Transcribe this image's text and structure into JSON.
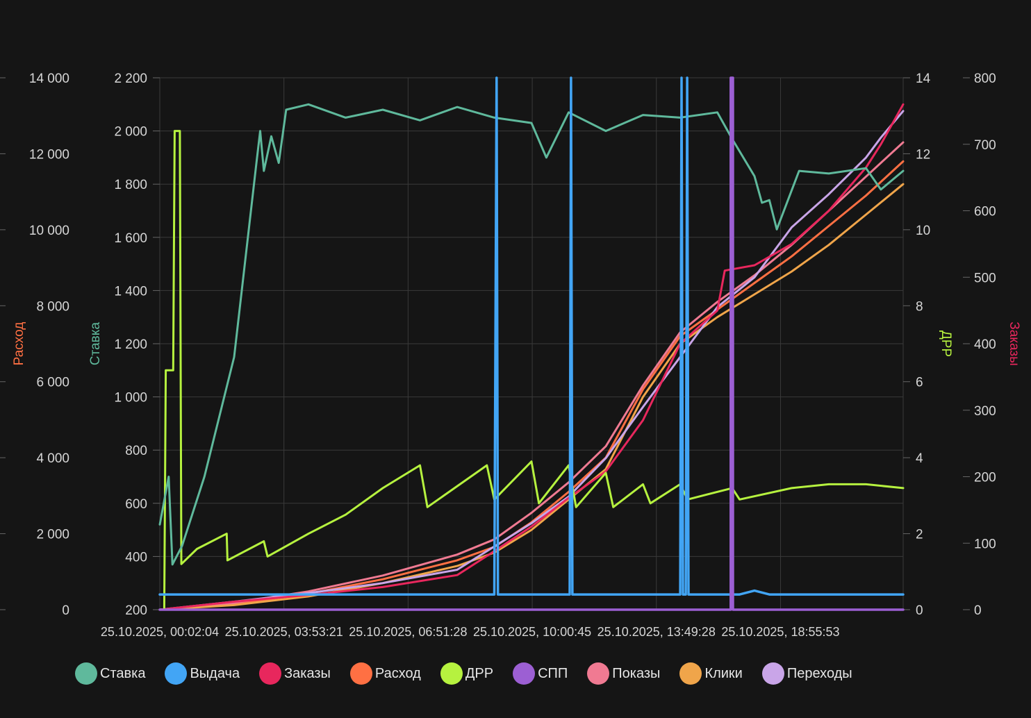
{
  "chart_data": {
    "type": "line",
    "axes": {
      "left_outer": {
        "label": "Расход",
        "color": "#ff7043",
        "ylim": [
          0,
          14000
        ],
        "ticks": [
          "0",
          "2 000",
          "4 000",
          "6 000",
          "8 000",
          "10 000",
          "12 000",
          "14 000"
        ]
      },
      "left_inner": {
        "label": "Ставка",
        "color": "#5fb99c",
        "ylim": [
          200,
          2200
        ],
        "ticks": [
          "200",
          "400",
          "600",
          "800",
          "1 000",
          "1 200",
          "1 400",
          "1 600",
          "1 800",
          "2 000",
          "2 200"
        ]
      },
      "right_inner": {
        "label": "ДРР",
        "color": "#b6f23f",
        "ylim": [
          0,
          14
        ],
        "ticks": [
          "0",
          "2",
          "4",
          "6",
          "8",
          "10",
          "12",
          "14"
        ]
      },
      "right_outer": {
        "label": "Заказы",
        "color": "#e8275d",
        "ylim": [
          0,
          800
        ],
        "ticks": [
          "0",
          "100",
          "200",
          "300",
          "400",
          "500",
          "600",
          "700",
          "800"
        ]
      }
    },
    "x_ticks": [
      "25.10.2025, 00:02:04",
      "25.10.2025, 03:53:21",
      "25.10.2025, 06:51:28",
      "25.10.2025, 10:00:45",
      "25.10.2025, 13:49:28",
      "25.10.2025, 18:55:53"
    ],
    "grid": true,
    "legend_position": "bottom",
    "series": [
      {
        "name": "Ставка",
        "color": "#5fb99c",
        "axis": "left_inner",
        "points": [
          [
            0,
            520
          ],
          [
            0.012,
            700
          ],
          [
            0.017,
            370
          ],
          [
            0.03,
            440
          ],
          [
            0.06,
            700
          ],
          [
            0.1,
            1150
          ],
          [
            0.13,
            1880
          ],
          [
            0.135,
            2000
          ],
          [
            0.14,
            1850
          ],
          [
            0.15,
            1980
          ],
          [
            0.16,
            1880
          ],
          [
            0.17,
            2080
          ],
          [
            0.2,
            2100
          ],
          [
            0.25,
            2050
          ],
          [
            0.3,
            2080
          ],
          [
            0.35,
            2040
          ],
          [
            0.4,
            2090
          ],
          [
            0.45,
            2050
          ],
          [
            0.5,
            2030
          ],
          [
            0.52,
            1900
          ],
          [
            0.55,
            2070
          ],
          [
            0.6,
            2000
          ],
          [
            0.65,
            2060
          ],
          [
            0.7,
            2050
          ],
          [
            0.75,
            2070
          ],
          [
            0.77,
            1970
          ],
          [
            0.8,
            1830
          ],
          [
            0.81,
            1730
          ],
          [
            0.82,
            1740
          ],
          [
            0.83,
            1630
          ],
          [
            0.86,
            1850
          ],
          [
            0.9,
            1840
          ],
          [
            0.95,
            1860
          ],
          [
            0.97,
            1780
          ],
          [
            1.0,
            1850
          ]
        ]
      },
      {
        "name": "Выдача",
        "color": "#42a5f5",
        "axis": "right_inner",
        "points": [
          [
            0,
            0.4
          ],
          [
            0.2,
            0.4
          ],
          [
            0.45,
            0.4
          ],
          [
            0.4531,
            14
          ],
          [
            0.4549,
            0.4
          ],
          [
            0.5514,
            0.4
          ],
          [
            0.5532,
            14
          ],
          [
            0.555,
            0.4
          ],
          [
            0.7001,
            0.4
          ],
          [
            0.7019,
            14
          ],
          [
            0.7037,
            0.4
          ],
          [
            0.7076,
            0.4
          ],
          [
            0.7094,
            14
          ],
          [
            0.7112,
            0.4
          ],
          [
            0.78,
            0.4
          ],
          [
            0.8,
            0.5
          ],
          [
            0.82,
            0.4
          ],
          [
            1.0,
            0.4
          ]
        ]
      },
      {
        "name": "Заказы",
        "color": "#e8275d",
        "axis": "right_outer",
        "points": [
          [
            0,
            0
          ],
          [
            0.1,
            12
          ],
          [
            0.2,
            22
          ],
          [
            0.3,
            34
          ],
          [
            0.4,
            52
          ],
          [
            0.45,
            88
          ],
          [
            0.5,
            125
          ],
          [
            0.55,
            168
          ],
          [
            0.6,
            208
          ],
          [
            0.65,
            285
          ],
          [
            0.7,
            400
          ],
          [
            0.75,
            450
          ],
          [
            0.76,
            510
          ],
          [
            0.8,
            518
          ],
          [
            0.85,
            550
          ],
          [
            0.9,
            600
          ],
          [
            0.95,
            665
          ],
          [
            0.97,
            700
          ],
          [
            1.0,
            760
          ]
        ]
      },
      {
        "name": "Расход",
        "color": "#ff7043",
        "axis": "left_outer",
        "points": [
          [
            0,
            0
          ],
          [
            0.1,
            150
          ],
          [
            0.2,
            420
          ],
          [
            0.3,
            800
          ],
          [
            0.4,
            1300
          ],
          [
            0.45,
            1650
          ],
          [
            0.5,
            2300
          ],
          [
            0.55,
            3100
          ],
          [
            0.6,
            4000
          ],
          [
            0.65,
            5800
          ],
          [
            0.7,
            7200
          ],
          [
            0.75,
            7900
          ],
          [
            0.8,
            8600
          ],
          [
            0.85,
            9300
          ],
          [
            0.9,
            10100
          ],
          [
            0.95,
            10900
          ],
          [
            1.0,
            11800
          ]
        ]
      },
      {
        "name": "ДРР",
        "color": "#b6f23f",
        "axis": "right_inner",
        "points": [
          [
            0,
            0
          ],
          [
            0.006,
            0
          ],
          [
            0.008,
            6.3
          ],
          [
            0.018,
            6.3
          ],
          [
            0.02,
            12.6
          ],
          [
            0.027,
            12.6
          ],
          [
            0.029,
            1.2
          ],
          [
            0.05,
            1.6
          ],
          [
            0.09,
            2.0
          ],
          [
            0.091,
            1.3
          ],
          [
            0.14,
            1.8
          ],
          [
            0.145,
            1.4
          ],
          [
            0.2,
            2.0
          ],
          [
            0.25,
            2.5
          ],
          [
            0.3,
            3.2
          ],
          [
            0.35,
            3.8
          ],
          [
            0.36,
            2.7
          ],
          [
            0.44,
            3.8
          ],
          [
            0.45,
            2.9
          ],
          [
            0.5,
            3.9
          ],
          [
            0.51,
            2.8
          ],
          [
            0.55,
            3.8
          ],
          [
            0.56,
            2.7
          ],
          [
            0.6,
            3.6
          ],
          [
            0.61,
            2.7
          ],
          [
            0.65,
            3.3
          ],
          [
            0.66,
            2.8
          ],
          [
            0.7,
            3.3
          ],
          [
            0.71,
            2.9
          ],
          [
            0.77,
            3.2
          ],
          [
            0.78,
            2.9
          ],
          [
            0.85,
            3.2
          ],
          [
            0.9,
            3.3
          ],
          [
            0.95,
            3.3
          ],
          [
            1.0,
            3.2
          ]
        ]
      },
      {
        "name": "СПП",
        "color": "#9c5fd3",
        "axis": "right_outer",
        "points": [
          [
            0,
            0
          ],
          [
            0.768,
            0
          ],
          [
            0.768,
            800
          ],
          [
            0.771,
            800
          ],
          [
            0.771,
            0
          ],
          [
            1.0,
            0
          ]
        ]
      },
      {
        "name": "Показы",
        "color": "#f07a92",
        "axis": "left_outer",
        "points": [
          [
            0,
            0
          ],
          [
            0.1,
            180
          ],
          [
            0.2,
            480
          ],
          [
            0.3,
            900
          ],
          [
            0.4,
            1450
          ],
          [
            0.45,
            1850
          ],
          [
            0.5,
            2550
          ],
          [
            0.55,
            3350
          ],
          [
            0.6,
            4300
          ],
          [
            0.65,
            5900
          ],
          [
            0.7,
            7300
          ],
          [
            0.75,
            8100
          ],
          [
            0.8,
            8800
          ],
          [
            0.85,
            9600
          ],
          [
            0.9,
            10500
          ],
          [
            0.95,
            11400
          ],
          [
            1.0,
            12300
          ]
        ]
      },
      {
        "name": "Клики",
        "color": "#f0a54a",
        "axis": "left_outer",
        "points": [
          [
            0,
            0
          ],
          [
            0.1,
            120
          ],
          [
            0.2,
            350
          ],
          [
            0.3,
            700
          ],
          [
            0.4,
            1150
          ],
          [
            0.45,
            1500
          ],
          [
            0.5,
            2100
          ],
          [
            0.55,
            2900
          ],
          [
            0.6,
            3700
          ],
          [
            0.65,
            5600
          ],
          [
            0.7,
            7000
          ],
          [
            0.75,
            7700
          ],
          [
            0.8,
            8300
          ],
          [
            0.85,
            8900
          ],
          [
            0.9,
            9600
          ],
          [
            0.95,
            10400
          ],
          [
            1.0,
            11200
          ]
        ]
      },
      {
        "name": "Переходы",
        "color": "#c9a5e8",
        "axis": "right_outer",
        "points": [
          [
            0,
            0
          ],
          [
            0.1,
            12
          ],
          [
            0.2,
            25
          ],
          [
            0.3,
            40
          ],
          [
            0.4,
            60
          ],
          [
            0.45,
            95
          ],
          [
            0.5,
            130
          ],
          [
            0.55,
            170
          ],
          [
            0.6,
            228
          ],
          [
            0.65,
            305
          ],
          [
            0.7,
            380
          ],
          [
            0.75,
            455
          ],
          [
            0.8,
            500
          ],
          [
            0.85,
            575
          ],
          [
            0.9,
            625
          ],
          [
            0.95,
            680
          ],
          [
            0.97,
            710
          ],
          [
            1.0,
            750
          ]
        ]
      }
    ]
  },
  "legend": [
    {
      "label": "Ставка",
      "color": "#5fb99c"
    },
    {
      "label": "Выдача",
      "color": "#42a5f5"
    },
    {
      "label": "Заказы",
      "color": "#e8275d"
    },
    {
      "label": "Расход",
      "color": "#ff7043"
    },
    {
      "label": "ДРР",
      "color": "#b6f23f"
    },
    {
      "label": "СПП",
      "color": "#9c5fd3"
    },
    {
      "label": "Показы",
      "color": "#f07a92"
    },
    {
      "label": "Клики",
      "color": "#f0a54a"
    },
    {
      "label": "Переходы",
      "color": "#c9a5e8"
    }
  ]
}
